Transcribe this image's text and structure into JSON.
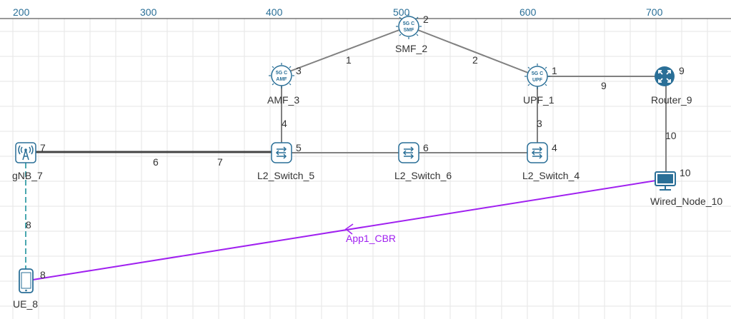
{
  "ruler": {
    "labels": [
      "200",
      "300",
      "400",
      "500",
      "600",
      "700"
    ]
  },
  "colors": {
    "grid": "#e6e6e6",
    "ruler_text": "#2a6f97",
    "link": "#808080",
    "link_dark": "#444444",
    "wireless": "#4aa8b0",
    "app": "#a020f0",
    "icon": "#2a6f97"
  },
  "nodes": {
    "smf": {
      "label": "SMF_2",
      "id": "2",
      "icon": "5gc-smf-icon",
      "icon_top": "5G C",
      "icon_bottom": "SMF"
    },
    "amf": {
      "label": "AMF_3",
      "id": "3",
      "icon": "5gc-amf-icon",
      "icon_top": "5G C",
      "icon_bottom": "AMF"
    },
    "upf": {
      "label": "UPF_1",
      "id": "1",
      "icon": "5gc-upf-icon",
      "icon_top": "5G C",
      "icon_bottom": "UPF"
    },
    "router": {
      "label": "Router_9",
      "id": "9",
      "icon": "router-icon"
    },
    "gnb": {
      "label": "gNB_7",
      "id": "7",
      "icon": "gnb-tower-icon"
    },
    "sw5": {
      "label": "L2_Switch_5",
      "id": "5",
      "icon": "switch-icon"
    },
    "sw6": {
      "label": "L2_Switch_6",
      "id": "6",
      "icon": "switch-icon"
    },
    "sw4": {
      "label": "L2_Switch_4",
      "id": "4",
      "icon": "switch-icon"
    },
    "wired": {
      "label": "Wired_Node_10",
      "id": "10",
      "icon": "monitor-icon"
    },
    "ue": {
      "label": "UE_8",
      "id": "8",
      "icon": "phone-icon"
    }
  },
  "links": {
    "amf_smf": "1",
    "smf_upf": "2",
    "upf_sw4": "3",
    "amf_sw5": "4",
    "gnb_sw5_a": "6",
    "gnb_sw5_b": "7",
    "ue_gnb": "8",
    "upf_router": "9",
    "router_wired": "10"
  },
  "application": {
    "label": "App1_CBR"
  }
}
